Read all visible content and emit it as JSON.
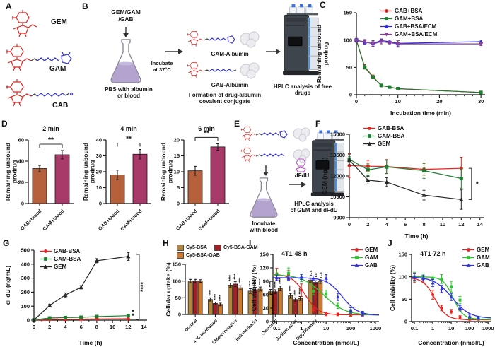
{
  "panels": {
    "a": "A",
    "b": "B",
    "c": "C",
    "d": "D",
    "e": "E",
    "f": "F",
    "g": "G",
    "h": "H",
    "i": "I",
    "j": "J"
  },
  "panel_a": {
    "labels": [
      "GEM",
      "GAM",
      "GAB"
    ]
  },
  "panel_b": {
    "input": "GEM/GAM\n/GAB",
    "incubate": "Incubate\nat 37°C",
    "flask_caption": "PBS with albumin\nor blood",
    "conj1": "GAM-Albumin",
    "conj2": "GAB-Albumin",
    "formation": "Formation of drug-albumin\ncovalent conjugate",
    "hplc": "HPLC analysis of free\ndrugs"
  },
  "panel_e": {
    "incubate": "Incubate\nwith blood",
    "dfdu": "dFdU",
    "hplc": "HPLC analysis\nof GEM and dFdU"
  },
  "chart_data": [
    {
      "el": "chart-c",
      "type": "line",
      "xlabel": "Incubation time (min)",
      "ylabel": "Remaining unbound\nprodrug",
      "xlim": [
        0,
        31
      ],
      "ylim": [
        0,
        150
      ],
      "xticks": [
        0,
        10,
        20,
        30
      ],
      "yticks": [
        0,
        50,
        100,
        150
      ],
      "xminor": 2,
      "m": [
        16,
        14,
        32,
        58
      ],
      "ylx": 8,
      "x": [
        0,
        2,
        4,
        6,
        8,
        10,
        30
      ],
      "series": [
        {
          "name": "GAB+BSA",
          "color": "#e8231e",
          "marker": "circle",
          "values": [
            100,
            51,
            33,
            17,
            14,
            11,
            4
          ],
          "err": [
            2,
            4,
            3,
            2,
            2,
            2,
            2
          ]
        },
        {
          "name": "GAM+BSA",
          "color": "#1e7d33",
          "marker": "square",
          "values": [
            100,
            50,
            32,
            17,
            14,
            11,
            4
          ],
          "err": [
            2,
            3,
            3,
            2,
            2,
            2,
            2
          ]
        },
        {
          "name": "GAB+BSA/ECM",
          "color": "#2a2ad4",
          "marker": "tri",
          "values": [
            100,
            96,
            94,
            99,
            97,
            94,
            97
          ],
          "err": [
            3,
            4,
            5,
            3,
            3,
            5,
            3
          ]
        },
        {
          "name": "GAM+BSA/ECM",
          "color": "#8a3f9b",
          "marker": "tridown",
          "values": [
            99,
            97,
            93,
            97,
            95,
            93,
            93
          ],
          "err": [
            3,
            4,
            5,
            4,
            3,
            6,
            3
          ]
        }
      ]
    },
    {
      "el": "chart-d1",
      "type": "bar",
      "title": "2 min",
      "ylabel": "Remaining unbound\nprodrug",
      "ylim": [
        0,
        60
      ],
      "yticks": [
        0,
        20,
        40,
        60
      ],
      "m": [
        24,
        8,
        50,
        32
      ],
      "ylx": 6,
      "categories": [
        "GAB+blood",
        "GAM+blood"
      ],
      "values": [
        33,
        46
      ],
      "err": [
        3,
        4
      ],
      "colors": [
        "#b6613c",
        "#a83a69"
      ],
      "sig": "**"
    },
    {
      "el": "chart-d2",
      "type": "bar",
      "title": "4 min",
      "ylabel": "Remaining unbound\nprodrug",
      "ylim": [
        0,
        40
      ],
      "yticks": [
        0,
        10,
        20,
        30,
        40
      ],
      "m": [
        24,
        8,
        50,
        32
      ],
      "ylx": 6,
      "categories": [
        "GAB+blood",
        "GAM+blood"
      ],
      "values": [
        18,
        31
      ],
      "err": [
        3,
        3
      ],
      "colors": [
        "#b6613c",
        "#a83a69"
      ],
      "sig": "**"
    },
    {
      "el": "chart-d3",
      "type": "bar",
      "title": "6 min",
      "ylabel": "Remaining unbound\nprodrug",
      "ylim": [
        0,
        20
      ],
      "yticks": [
        0,
        5,
        10,
        15,
        20
      ],
      "m": [
        24,
        8,
        50,
        32
      ],
      "ylx": 6,
      "categories": [
        "GAB+blood",
        "GAM+blood"
      ],
      "values": [
        10.3,
        17.8
      ],
      "err": [
        1.4,
        1
      ],
      "colors": [
        "#b6613c",
        "#a83a69"
      ],
      "sig": "**"
    },
    {
      "el": "chart-f",
      "type": "line",
      "xlabel": "Time (h)",
      "ylabel": "GEM (ng/mL)",
      "xlim": [
        0,
        14.4
      ],
      "ylim": [
        9000,
        15000
      ],
      "xticks": [
        0,
        2,
        4,
        6,
        8,
        10,
        12,
        14
      ],
      "yticks": [
        9000,
        10500,
        12000,
        13500,
        15000
      ],
      "xminor": 1,
      "m": [
        20,
        16,
        32,
        42
      ],
      "ylx": 10,
      "x": [
        0,
        2,
        4,
        8,
        12
      ],
      "series": [
        {
          "name": "GAB-BSA",
          "color": "#e8231e",
          "marker": "circle",
          "values": [
            12750,
            12700,
            12680,
            12480,
            12550
          ],
          "err": [
            850,
            420,
            500,
            420,
            800
          ]
        },
        {
          "name": "GAM-BSA",
          "color": "#1e7d33",
          "marker": "square",
          "values": [
            13200,
            12450,
            12650,
            12380,
            11820
          ],
          "err": [
            180,
            420,
            480,
            550,
            700
          ]
        },
        {
          "name": "GEM",
          "color": "#262626",
          "marker": "tri",
          "values": [
            13150,
            11700,
            11560,
            10620,
            10300
          ],
          "err": [
            380,
            280,
            320,
            350,
            700
          ]
        }
      ],
      "ann": [
        {
          "t": "vbr",
          "x": 13.1,
          "y1": 12550,
          "y2": 10300,
          "label": "*"
        }
      ]
    },
    {
      "el": "chart-g",
      "type": "line",
      "xlabel": "Time (h)",
      "ylabel": "dFdU (ng/mL)",
      "xlim": [
        0,
        14.4
      ],
      "ylim": [
        0,
        500
      ],
      "xticks": [
        0,
        2,
        4,
        6,
        8,
        10,
        12,
        14
      ],
      "yticks": [
        0,
        100,
        200,
        300,
        400,
        500
      ],
      "xminor": 1,
      "m": [
        12,
        18,
        38,
        46
      ],
      "ylx": 12,
      "x": [
        0,
        2,
        4,
        6,
        8,
        12
      ],
      "series": [
        {
          "name": "GAB-BSA",
          "color": "#e8231e",
          "marker": "circle",
          "values": [
            1,
            5,
            6,
            7,
            8,
            10
          ],
          "err": [
            1,
            2,
            2,
            2,
            2,
            3
          ]
        },
        {
          "name": "GAM-BSA",
          "color": "#1e7d33",
          "marker": "square",
          "values": [
            2,
            15,
            18,
            20,
            25,
            32
          ],
          "err": [
            1,
            3,
            3,
            3,
            4,
            5
          ]
        },
        {
          "name": "GEM",
          "color": "#262626",
          "marker": "tri",
          "values": [
            0,
            105,
            180,
            235,
            425,
            455
          ],
          "err": [
            0,
            8,
            15,
            12,
            15,
            28
          ]
        }
      ],
      "ann": [
        {
          "t": "vbr",
          "x": 13.4,
          "y1": 470,
          "y2": 5,
          "label": "****",
          "rot": true
        },
        {
          "t": "txt",
          "x": 12.6,
          "y": 42,
          "label": "*"
        },
        {
          "t": "txt",
          "x": 12.6,
          "y": 14,
          "label": "*"
        }
      ]
    },
    {
      "el": "chart-h",
      "type": "groupbar",
      "ylabel": "Cellular uptake (%)",
      "ylim": [
        0,
        150
      ],
      "yticks": [
        0,
        50,
        100,
        150
      ],
      "m": [
        30,
        6,
        46,
        30
      ],
      "ylx": 9,
      "categories": [
        "Control",
        "4 °C incubation",
        "Chlorpromazine",
        "Indomethacin",
        "Quercetin",
        "Sodium azide",
        "Dipyridamole"
      ],
      "series": [
        {
          "name": "Cy5-BSA",
          "color": "#b3863d",
          "values": [
            100,
            45,
            88,
            70,
            68,
            56,
            103
          ],
          "err": [
            5,
            5,
            6,
            7,
            7,
            7,
            6
          ],
          "sig": [
            "",
            "****",
            "****",
            "****",
            "****",
            "****",
            "n.s"
          ]
        },
        {
          "name": "Cy5-BSA-GAM",
          "color": "#a31f24",
          "values": [
            100,
            33,
            91,
            74,
            68,
            45,
            96
          ],
          "err": [
            5,
            4,
            7,
            7,
            6,
            5,
            5
          ],
          "sig": [
            "",
            "****",
            "****",
            "****",
            "****",
            "****",
            "n.s"
          ]
        },
        {
          "name": "Cy5-BSA-GAB",
          "color": "#cd7a2e",
          "values": [
            100,
            30,
            80,
            76,
            78,
            48,
            98
          ],
          "err": [
            4,
            4,
            6,
            6,
            7,
            6,
            5
          ],
          "sig": [
            "",
            "****",
            "****",
            "****",
            "****",
            "****",
            "n.s"
          ]
        }
      ]
    },
    {
      "el": "chart-i",
      "type": "dose",
      "title": "4T1-48 h",
      "titlePos": "in",
      "xlabel": "Concentration (nmol/L)",
      "ylabel": "Cell viability (%)",
      "xlog": true,
      "xlim": [
        0.07,
        1400
      ],
      "ylim": [
        0,
        150
      ],
      "xticks": [
        0.1,
        1,
        10,
        100,
        1000
      ],
      "yticks": [
        0,
        30,
        60,
        90,
        120,
        150
      ],
      "m": [
        16,
        8,
        36,
        34
      ],
      "ylx": 10,
      "x": [
        0.1,
        0.3,
        1,
        3,
        10,
        30,
        100,
        300
      ],
      "series": [
        {
          "name": "GEM",
          "color": "#e8231e",
          "marker": "circle",
          "ms": 2,
          "values": [
            107,
            104,
            70,
            26,
            17,
            16,
            15,
            15
          ],
          "err": [
            12,
            10,
            14,
            5,
            4,
            3,
            3,
            3
          ],
          "curve": {
            "top": 106,
            "bottom": 15,
            "ec50": 1.4,
            "hill": 1.6
          }
        },
        {
          "name": "GAM",
          "color": "#2cc12e",
          "marker": "square",
          "ms": 2,
          "values": [
            105,
            108,
            97,
            68,
            62,
            35,
            22,
            17
          ],
          "err": [
            8,
            12,
            8,
            8,
            8,
            6,
            5,
            4
          ],
          "curve": {
            "top": 105,
            "bottom": 14,
            "ec50": 8,
            "hill": 1
          }
        },
        {
          "name": "GAB",
          "color": "#2f2fe0",
          "marker": "tri",
          "ms": 2,
          "values": [
            98,
            97,
            100,
            97,
            97,
            55,
            25,
            18
          ],
          "err": [
            6,
            5,
            6,
            5,
            8,
            8,
            6,
            5
          ],
          "curve": {
            "top": 98,
            "bottom": 14,
            "ec50": 45,
            "hill": 1.4
          }
        }
      ]
    },
    {
      "el": "chart-j",
      "type": "dose",
      "title": "4T1-72 h",
      "titlePos": "in",
      "xlabel": "Concentration (nmol/L)",
      "ylabel": "Cell viability (%)",
      "xlog": true,
      "xlim": [
        0.07,
        1400
      ],
      "ylim": [
        0,
        150
      ],
      "xticks": [
        0.1,
        1,
        10,
        100,
        1000
      ],
      "yticks": [
        0,
        50,
        100,
        150
      ],
      "m": [
        16,
        6,
        36,
        34
      ],
      "ylx": 10,
      "x": [
        0.1,
        0.3,
        1,
        3,
        10,
        30,
        100,
        300
      ],
      "series": [
        {
          "name": "GEM",
          "color": "#e8231e",
          "marker": "circle",
          "ms": 2,
          "values": [
            97,
            95,
            60,
            30,
            22,
            10,
            5,
            5
          ],
          "err": [
            10,
            8,
            10,
            6,
            5,
            3,
            2,
            2
          ],
          "curve": {
            "top": 98,
            "bottom": 4,
            "ec50": 1.3,
            "hill": 1.4
          }
        },
        {
          "name": "GAM",
          "color": "#2cc12e",
          "marker": "square",
          "ms": 2,
          "values": [
            100,
            100,
            96,
            95,
            78,
            48,
            8,
            7
          ],
          "err": [
            10,
            6,
            6,
            10,
            12,
            8,
            3,
            3
          ],
          "curve": {
            "top": 100,
            "bottom": 5,
            "ec50": 13,
            "hill": 1.6
          }
        },
        {
          "name": "GAB",
          "color": "#2f2fe0",
          "marker": "tri",
          "ms": 2,
          "values": [
            100,
            97,
            86,
            73,
            55,
            30,
            12,
            8
          ],
          "err": [
            8,
            6,
            8,
            8,
            8,
            6,
            4,
            3
          ],
          "curve": {
            "top": 100,
            "bottom": 7,
            "ec50": 11,
            "hill": 0.9
          }
        }
      ]
    }
  ]
}
